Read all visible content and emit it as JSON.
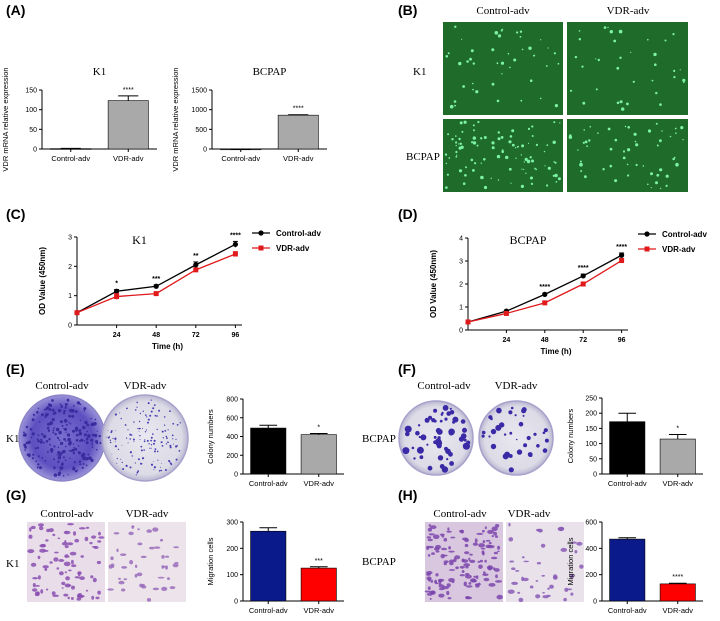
{
  "panels": {
    "A": {
      "label": "(A)"
    },
    "B": {
      "label": "(B)",
      "col1": "Control-adv",
      "col2": "VDR-adv",
      "row1": "K1",
      "row2": "BCPAP",
      "fluorescence_color": "#1f6b2a"
    },
    "C": {
      "label": "(C)"
    },
    "D": {
      "label": "(D)"
    },
    "E": {
      "label": "(E)",
      "img_col1": "Control-adv",
      "img_col2": "VDR-adv",
      "row_label": "K1"
    },
    "F": {
      "label": "(F)",
      "img_col1": "Control-adv",
      "img_col2": "VDR-adv",
      "row_label": "BCPAP"
    },
    "G": {
      "label": "(G)",
      "img_col1": "Control-adv",
      "img_col2": "VDR-adv",
      "row_label": "K1"
    },
    "H": {
      "label": "(H)",
      "img_col1": "Control-adv",
      "img_col2": "VDR-adv",
      "row_label": "BCPAP"
    }
  },
  "chart_data": [
    {
      "id": "A1",
      "type": "bar",
      "title": "K1",
      "ylabel": "VDR mRNA relative expression",
      "xlabel": "",
      "categories": [
        "Control-adv",
        "VDR-adv"
      ],
      "values": [
        1,
        123
      ],
      "errors": [
        0.5,
        12
      ],
      "colors": [
        "#a9a9a9",
        "#a9a9a9"
      ],
      "ylim": [
        0,
        150
      ],
      "yticks": [
        0,
        50,
        100,
        150
      ],
      "annotations": [
        "",
        "****"
      ]
    },
    {
      "id": "A2",
      "type": "bar",
      "title": "BCPAP",
      "ylabel": "VDR mRNA relative expression",
      "xlabel": "",
      "categories": [
        "Control-adv",
        "VDR-adv"
      ],
      "values": [
        1,
        860
      ],
      "errors": [
        0.5,
        12
      ],
      "colors": [
        "#a9a9a9",
        "#a9a9a9"
      ],
      "ylim": [
        0,
        1500
      ],
      "yticks": [
        0,
        500,
        1000,
        1500
      ],
      "annotations": [
        "",
        "****"
      ]
    },
    {
      "id": "C",
      "type": "line",
      "title": "K1",
      "xlabel": "Time (h)",
      "ylabel": "OD Value (450nm)",
      "x": [
        0,
        24,
        48,
        72,
        96
      ],
      "xticks": [
        24,
        48,
        72,
        96
      ],
      "xlim": [
        0,
        100
      ],
      "ylim": [
        0,
        3
      ],
      "yticks": [
        0,
        1,
        2,
        3
      ],
      "series": [
        {
          "name": "Control-adv",
          "color": "#000000",
          "marker": "circle",
          "values": [
            0.42,
            1.15,
            1.32,
            2.05,
            2.75
          ],
          "errors": [
            0.03,
            0.06,
            0.05,
            0.1,
            0.1
          ]
        },
        {
          "name": "VDR-adv",
          "color": "#e0191b",
          "marker": "square",
          "values": [
            0.42,
            0.97,
            1.07,
            1.88,
            2.42
          ],
          "errors": [
            0.03,
            0.1,
            0.05,
            0.06,
            0.08
          ]
        }
      ],
      "annotations": [
        "",
        "*",
        "***",
        "**",
        "****"
      ]
    },
    {
      "id": "D",
      "type": "line",
      "title": "BCPAP",
      "xlabel": "Time (h)",
      "ylabel": "OD Value (450nm)",
      "x": [
        0,
        24,
        48,
        72,
        96
      ],
      "xticks": [
        24,
        48,
        72,
        96
      ],
      "xlim": [
        0,
        100
      ],
      "ylim": [
        0,
        4
      ],
      "yticks": [
        0,
        1,
        2,
        3,
        4
      ],
      "series": [
        {
          "name": "Control-adv",
          "color": "#000000",
          "marker": "circle",
          "values": [
            0.35,
            0.82,
            1.55,
            2.35,
            3.25
          ],
          "errors": [
            0.03,
            0.04,
            0.05,
            0.08,
            0.1
          ]
        },
        {
          "name": "VDR-adv",
          "color": "#e0191b",
          "marker": "square",
          "values": [
            0.35,
            0.72,
            1.18,
            2.0,
            3.02
          ],
          "errors": [
            0.03,
            0.04,
            0.05,
            0.06,
            0.08
          ]
        }
      ],
      "annotations": [
        "",
        "",
        "****",
        "****",
        "****"
      ]
    },
    {
      "id": "E",
      "type": "bar",
      "title": "",
      "ylabel": "Colony numbers",
      "xlabel": "",
      "categories": [
        "Control-adv",
        "VDR-adv"
      ],
      "values": [
        490,
        420
      ],
      "errors": [
        30,
        12
      ],
      "colors": [
        "#000000",
        "#a9a9a9"
      ],
      "ylim": [
        0,
        800
      ],
      "yticks": [
        0,
        200,
        400,
        600,
        800
      ],
      "annotations": [
        "",
        "*"
      ]
    },
    {
      "id": "F",
      "type": "bar",
      "title": "",
      "ylabel": "Colony numbers",
      "xlabel": "",
      "categories": [
        "Control-adv",
        "VDR-adv"
      ],
      "values": [
        172,
        115
      ],
      "errors": [
        28,
        15
      ],
      "colors": [
        "#000000",
        "#a9a9a9"
      ],
      "ylim": [
        0,
        250
      ],
      "yticks": [
        0,
        50,
        100,
        150,
        200,
        250
      ],
      "annotations": [
        "",
        "*"
      ]
    },
    {
      "id": "G",
      "type": "bar",
      "title": "",
      "ylabel": "Migration cells",
      "xlabel": "",
      "categories": [
        "Control-adv",
        "VDR-adv"
      ],
      "values": [
        265,
        125
      ],
      "errors": [
        13,
        5
      ],
      "colors": [
        "#0b1a8a",
        "#ff0000"
      ],
      "ylim": [
        0,
        300
      ],
      "yticks": [
        0,
        100,
        200,
        300
      ],
      "annotations": [
        "",
        "***"
      ]
    },
    {
      "id": "H",
      "type": "bar",
      "title": "",
      "ylabel": "Migration cells",
      "xlabel": "",
      "categories": [
        "Control-adv",
        "VDR-adv"
      ],
      "values": [
        470,
        130
      ],
      "errors": [
        10,
        5
      ],
      "colors": [
        "#0b1a8a",
        "#ff0000"
      ],
      "ylim": [
        0,
        600
      ],
      "yticks": [
        0,
        200,
        400,
        600
      ],
      "annotations": [
        "",
        "****"
      ]
    }
  ]
}
